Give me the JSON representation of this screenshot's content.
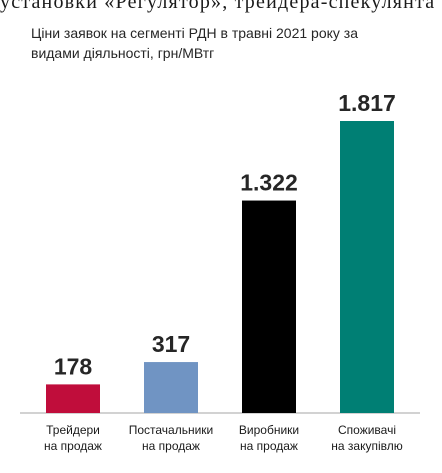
{
  "header_fragment": "установки «Регулятор», трейдера-спекулянта",
  "chart_data": {
    "type": "bar",
    "title": "Ціни заявок на сегменті РДН в травні 2021 року за видами діяльності, грн/МВтг",
    "categories": [
      [
        "Трейдери",
        "на продаж"
      ],
      [
        "Постачальники",
        "на продаж"
      ],
      [
        "Виробники",
        "на продаж"
      ],
      [
        "Споживачі",
        "на закупівлю"
      ]
    ],
    "values": [
      178,
      317,
      1322,
      1817
    ],
    "value_labels": [
      "178",
      "317",
      "1.322",
      "1.817"
    ],
    "colors": [
      "#c00d3b",
      "#7094c3",
      "#000000",
      "#007f74"
    ],
    "ylim": [
      0,
      1817
    ],
    "xlabel": "",
    "ylabel": "",
    "grid": false
  }
}
